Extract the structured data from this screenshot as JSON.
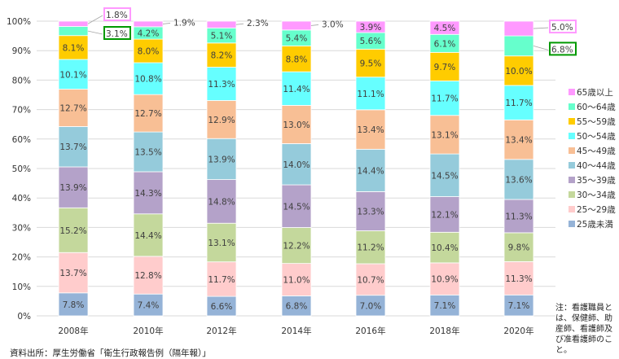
{
  "chart_data": {
    "type": "bar",
    "stacked": true,
    "percent_stacked": true,
    "categories": [
      "2008年",
      "2010年",
      "2012年",
      "2014年",
      "2016年",
      "2018年",
      "2020年"
    ],
    "ylim": [
      0,
      100
    ],
    "yticks": [
      "0%",
      "10%",
      "20%",
      "30%",
      "40%",
      "50%",
      "60%",
      "70%",
      "80%",
      "90%",
      "100%"
    ],
    "grid": true,
    "legend_placement": "right",
    "series": [
      {
        "name": "25歳未満",
        "color": "#95b3d7",
        "values": [
          7.8,
          7.4,
          6.6,
          6.8,
          7.0,
          7.1,
          7.1
        ]
      },
      {
        "name": "25〜29歳",
        "color": "#ffcccc",
        "values": [
          13.7,
          12.8,
          11.7,
          11.0,
          10.7,
          10.9,
          11.3
        ]
      },
      {
        "name": "30〜34歳",
        "color": "#c4d89c",
        "values": [
          15.2,
          14.4,
          13.1,
          12.2,
          11.2,
          10.4,
          9.8
        ]
      },
      {
        "name": "35〜39歳",
        "color": "#b4a2c9",
        "values": [
          13.9,
          14.3,
          14.8,
          14.5,
          13.3,
          12.1,
          11.3
        ]
      },
      {
        "name": "40〜44歳",
        "color": "#95cbdb",
        "values": [
          13.7,
          13.5,
          13.9,
          14.0,
          14.4,
          14.5,
          13.6
        ]
      },
      {
        "name": "45〜49歳",
        "color": "#f8bf95",
        "values": [
          12.7,
          12.7,
          12.9,
          13.0,
          13.4,
          13.1,
          13.4
        ]
      },
      {
        "name": "50〜54歳",
        "color": "#66ffff",
        "values": [
          10.1,
          10.8,
          11.3,
          11.4,
          11.1,
          11.7,
          11.7
        ]
      },
      {
        "name": "55〜59歳",
        "color": "#ffcc00",
        "values": [
          8.1,
          8.0,
          8.2,
          8.8,
          9.5,
          9.7,
          10.0
        ]
      },
      {
        "name": "60〜64歳",
        "color": "#66ffcc",
        "values": [
          3.1,
          4.2,
          5.1,
          5.4,
          5.6,
          6.1,
          6.8
        ]
      },
      {
        "name": "65歳以上",
        "color": "#ff99ff",
        "values": [
          1.8,
          1.9,
          2.3,
          3.0,
          3.9,
          4.5,
          5.0
        ]
      }
    ],
    "data_labels": [
      [
        "7.8%",
        "7.4%",
        "6.6%",
        "6.8%",
        "7.0%",
        "7.1%",
        "7.1%"
      ],
      [
        "13.7%",
        "12.8%",
        "11.7%",
        "11.0%",
        "10.7%",
        "10.9%",
        "11.3%"
      ],
      [
        "15.2%",
        "14.4%",
        "13.1%",
        "12.2%",
        "11.2%",
        "10.4%",
        "9.8%"
      ],
      [
        "13.9%",
        "14.3%",
        "14.8%",
        "14.5%",
        "13.3%",
        "12.1%",
        "11.3%"
      ],
      [
        "13.7%",
        "13.5%",
        "13.9%",
        "14.0%",
        "14.4%",
        "14.5%",
        "13.6%"
      ],
      [
        "12.7%",
        "12.7%",
        "12.9%",
        "13.0%",
        "13.4%",
        "13.1%",
        "13.4%"
      ],
      [
        "10.1%",
        "10.8%",
        "11.3%",
        "11.4%",
        "11.1%",
        "11.7%",
        "11.7%"
      ],
      [
        "8.1%",
        "8.0%",
        "8.2%",
        "8.8%",
        "9.5%",
        "9.7%",
        "10.0%"
      ],
      [
        "3.1%",
        "4.2%",
        "5.1%",
        "5.4%",
        "5.6%",
        "6.1%",
        "6.8%"
      ],
      [
        "1.8%",
        "1.9%",
        "2.3%",
        "3.0%",
        "3.9%",
        "4.5%",
        "5.0%"
      ]
    ],
    "outside_labels": [
      {
        "category": 0,
        "series": 9,
        "highlight": "#ff99ff"
      },
      {
        "category": 0,
        "series": 8,
        "highlight": "#009900"
      },
      {
        "category": 1,
        "series": 9,
        "highlight": ""
      },
      {
        "category": 2,
        "series": 9,
        "highlight": ""
      },
      {
        "category": 3,
        "series": 9,
        "highlight": ""
      },
      {
        "category": 6,
        "series": 9,
        "highlight": "#ff99ff"
      },
      {
        "category": 6,
        "series": 8,
        "highlight": "#009900"
      }
    ]
  },
  "note": "注：看護職員とは、保健師、助産師、看護師及び准看護師のこと。",
  "source": "資料出所：厚生労働省「衛生行政報告例（隔年報）」"
}
